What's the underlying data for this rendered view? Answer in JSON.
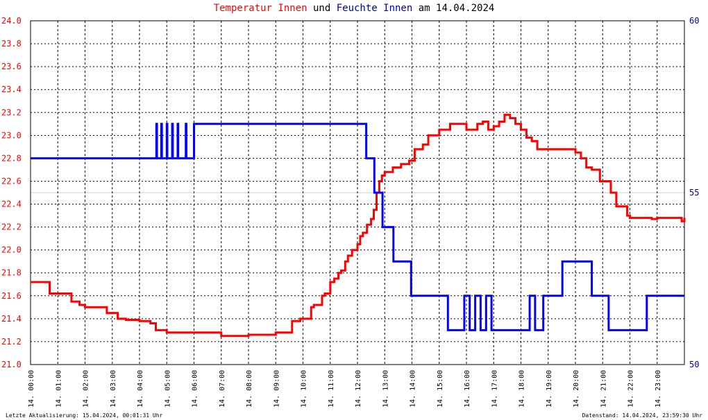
{
  "title": {
    "part1": "Temperatur Innen",
    "part2": "und",
    "part3": "Feuchte Innen",
    "part4": "am 14.04.2024"
  },
  "footer": {
    "left": "Letzte Aktualisierung: 15.04.2024, 00:01:31 Uhr",
    "right": "Datenstand: 14.04.2024, 23:59:30 Uhr"
  },
  "colors": {
    "temperature": "#ff0000",
    "humidity": "#0000ff",
    "left_axis_text": "#ff0000",
    "right_axis_text": "#0000aa",
    "grid": "#000000"
  },
  "chart_data": {
    "type": "line",
    "xlabel": "",
    "ylabel_left": "",
    "ylabel_right": "",
    "xlim": [
      0,
      24
    ],
    "ylim_left": [
      21.0,
      24.0
    ],
    "ylim_right": [
      50,
      60
    ],
    "grid": true,
    "x_tick_labels": [
      "14. 00:00",
      "14. 01:00",
      "14. 02:00",
      "14. 03:00",
      "14. 04:00",
      "14. 05:00",
      "14. 06:00",
      "14. 07:00",
      "14. 08:00",
      "14. 09:00",
      "14. 10:00",
      "14. 11:00",
      "14. 12:00",
      "14. 13:00",
      "14. 14:00",
      "14. 15:00",
      "14. 16:00",
      "14. 17:00",
      "14. 18:00",
      "14. 19:00",
      "14. 20:00",
      "14. 21:00",
      "14. 22:00",
      "14. 23:00"
    ],
    "y_left_ticks": [
      "21.0",
      "21.2",
      "21.4",
      "21.6",
      "21.8",
      "22.0",
      "22.2",
      "22.4",
      "22.6",
      "22.8",
      "23.0",
      "23.2",
      "23.4",
      "23.6",
      "23.8",
      "24.0"
    ],
    "y_right_ticks": [
      "50",
      "55",
      "60"
    ],
    "series": [
      {
        "axis": "left",
        "x": [
          0,
          0.6,
          0.7,
          1.2,
          1.5,
          1.8,
          2.0,
          2.5,
          2.8,
          3.2,
          3.5,
          4.0,
          4.4,
          4.6,
          5.0,
          6.0,
          7.0,
          8.0,
          9.0,
          9.45,
          9.6,
          9.9,
          10.0,
          10.3,
          10.4,
          10.7,
          10.8,
          11.0,
          11.15,
          11.3,
          11.4,
          11.55,
          11.65,
          11.8,
          12.0,
          12.1,
          12.2,
          12.35,
          12.5,
          12.6,
          12.7,
          12.8,
          12.9,
          13.0,
          13.3,
          13.6,
          13.9,
          14.1,
          14.4,
          14.6,
          15.0,
          15.4,
          15.8,
          16.0,
          16.4,
          16.6,
          16.8,
          17.0,
          17.2,
          17.4,
          17.6,
          17.8,
          18.0,
          18.2,
          18.4,
          18.6,
          19.0,
          19.5,
          20.0,
          20.2,
          20.4,
          20.6,
          20.9,
          21.0,
          21.3,
          21.5,
          21.9,
          22.0,
          22.5,
          22.8,
          23.0,
          23.4,
          23.9,
          24.0
        ],
        "values": [
          21.72,
          21.72,
          21.62,
          21.62,
          21.55,
          21.52,
          21.5,
          21.5,
          21.45,
          21.4,
          21.39,
          21.38,
          21.36,
          21.3,
          21.28,
          21.28,
          21.25,
          21.26,
          21.28,
          21.28,
          21.38,
          21.4,
          21.4,
          21.5,
          21.52,
          21.6,
          21.62,
          21.72,
          21.75,
          21.8,
          21.82,
          21.9,
          21.95,
          22.0,
          22.05,
          22.12,
          22.15,
          22.22,
          22.27,
          22.35,
          22.5,
          22.6,
          22.65,
          22.68,
          22.72,
          22.75,
          22.78,
          22.88,
          22.92,
          23.0,
          23.05,
          23.1,
          23.1,
          23.05,
          23.1,
          23.12,
          23.05,
          23.08,
          23.12,
          23.18,
          23.15,
          23.1,
          23.05,
          22.98,
          22.95,
          22.88,
          22.88,
          22.88,
          22.85,
          22.8,
          22.72,
          22.7,
          22.6,
          22.6,
          22.5,
          22.38,
          22.3,
          22.28,
          22.28,
          22.27,
          22.28,
          22.28,
          22.25,
          22.28
        ]
      },
      {
        "axis": "right",
        "x": [
          0,
          4.6,
          4.62,
          4.64,
          4.8,
          4.82,
          5.0,
          5.02,
          5.2,
          5.22,
          5.4,
          5.42,
          5.7,
          5.72,
          6.0,
          8.0,
          10.0,
          12.0,
          12.3,
          12.32,
          12.6,
          12.62,
          12.9,
          12.92,
          13.3,
          13.32,
          13.95,
          13.97,
          14.5,
          14.52,
          15.3,
          15.32,
          15.9,
          15.92,
          16.1,
          16.12,
          16.3,
          16.32,
          16.5,
          16.52,
          16.7,
          16.72,
          16.9,
          16.92,
          17.3,
          17.32,
          18.3,
          18.32,
          18.5,
          18.52,
          18.8,
          18.82,
          19.1,
          19.12,
          19.5,
          19.52,
          20.0,
          20.5,
          20.52,
          20.6,
          20.62,
          21.2,
          21.22,
          22.0,
          22.6,
          22.62,
          23.0,
          23.5,
          24.0
        ],
        "values": [
          56.0,
          56.0,
          57.0,
          56.0,
          57.0,
          56.0,
          57.0,
          56.0,
          57.0,
          56.0,
          57.0,
          56.0,
          57.0,
          56.0,
          57.0,
          57.0,
          57.0,
          57.0,
          57.0,
          56.0,
          56.0,
          55.0,
          55.0,
          54.0,
          54.0,
          53.0,
          53.0,
          52.0,
          52.0,
          52.0,
          52.0,
          51.0,
          51.0,
          52.0,
          52.0,
          51.0,
          51.0,
          52.0,
          52.0,
          51.0,
          51.0,
          52.0,
          52.0,
          51.0,
          51.0,
          51.0,
          51.0,
          52.0,
          52.0,
          51.0,
          51.0,
          52.0,
          52.0,
          52.0,
          52.0,
          53.0,
          53.0,
          53.0,
          53.0,
          52.0,
          52.0,
          52.0,
          51.0,
          51.0,
          51.0,
          52.0,
          52.0,
          52.0,
          52.0
        ]
      }
    ]
  }
}
